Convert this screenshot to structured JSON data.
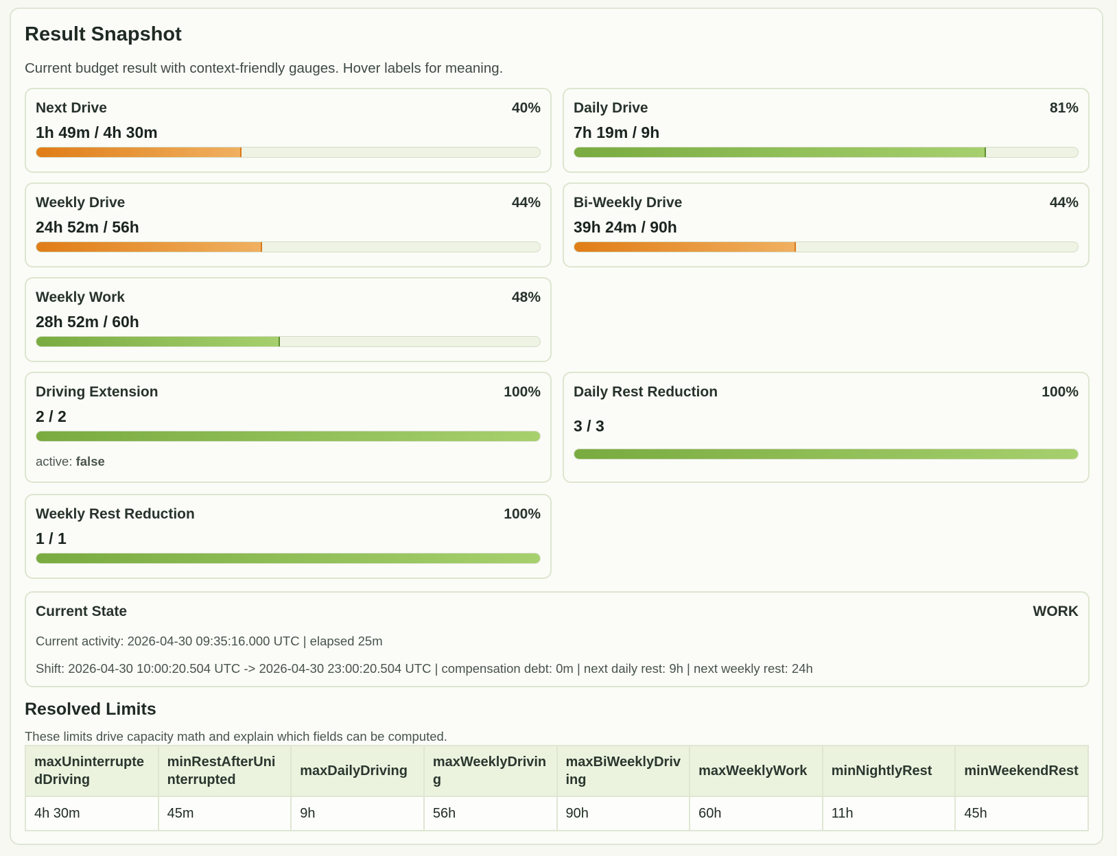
{
  "header": {
    "title": "Result Snapshot",
    "subtitle": "Current budget result with context-friendly gauges. Hover labels for meaning."
  },
  "gauges": {
    "next_drive": {
      "label": "Next Drive",
      "percent": "40%",
      "value": "1h 49m / 4h 30m",
      "level": 0.405,
      "color": "orange"
    },
    "daily_drive": {
      "label": "Daily Drive",
      "percent": "81%",
      "value": "7h 19m / 9h",
      "level": 0.815,
      "color": "green"
    },
    "weekly_drive": {
      "label": "Weekly Drive",
      "percent": "44%",
      "value": "24h 52m / 56h",
      "level": 0.445,
      "color": "orange"
    },
    "biweekly_drive": {
      "label": "Bi-Weekly Drive",
      "percent": "44%",
      "value": "39h 24m / 90h",
      "level": 0.438,
      "color": "orange"
    },
    "weekly_work": {
      "label": "Weekly Work",
      "percent": "48%",
      "value": "28h 52m / 60h",
      "level": 0.481,
      "color": "green"
    },
    "driving_extension": {
      "label": "Driving Extension",
      "percent": "100%",
      "value": "2 / 2",
      "level": 1.0,
      "color": "green",
      "active_label": "active:",
      "active_value": "false"
    },
    "daily_rest_reduction": {
      "label": "Daily Rest Reduction",
      "percent": "100%",
      "value": "3 / 3",
      "level": 1.0,
      "color": "green"
    },
    "weekly_rest_reduction": {
      "label": "Weekly Rest Reduction",
      "percent": "100%",
      "value": "1 / 1",
      "level": 1.0,
      "color": "green"
    }
  },
  "current_state": {
    "title": "Current State",
    "badge": "WORK",
    "activity_line": "Current activity: 2026-04-30 09:35:16.000 UTC | elapsed 25m",
    "shift_line": "Shift: 2026-04-30 10:00:20.504 UTC -> 2026-04-30 23:00:20.504 UTC | compensation debt: 0m | next daily rest: 9h | next weekly rest: 24h"
  },
  "resolved_limits": {
    "title": "Resolved Limits",
    "subtitle": "These limits drive capacity math and explain which fields can be computed.",
    "columns": [
      "maxUninterruptedDriving",
      "minRestAfterUninterrupted",
      "maxDailyDriving",
      "maxWeeklyDriving",
      "maxBiWeeklyDriving",
      "maxWeeklyWork",
      "minNightlyRest",
      "minWeekendRest"
    ],
    "values": [
      "4h 30m",
      "45m",
      "9h",
      "56h",
      "90h",
      "60h",
      "11h",
      "45h"
    ]
  }
}
